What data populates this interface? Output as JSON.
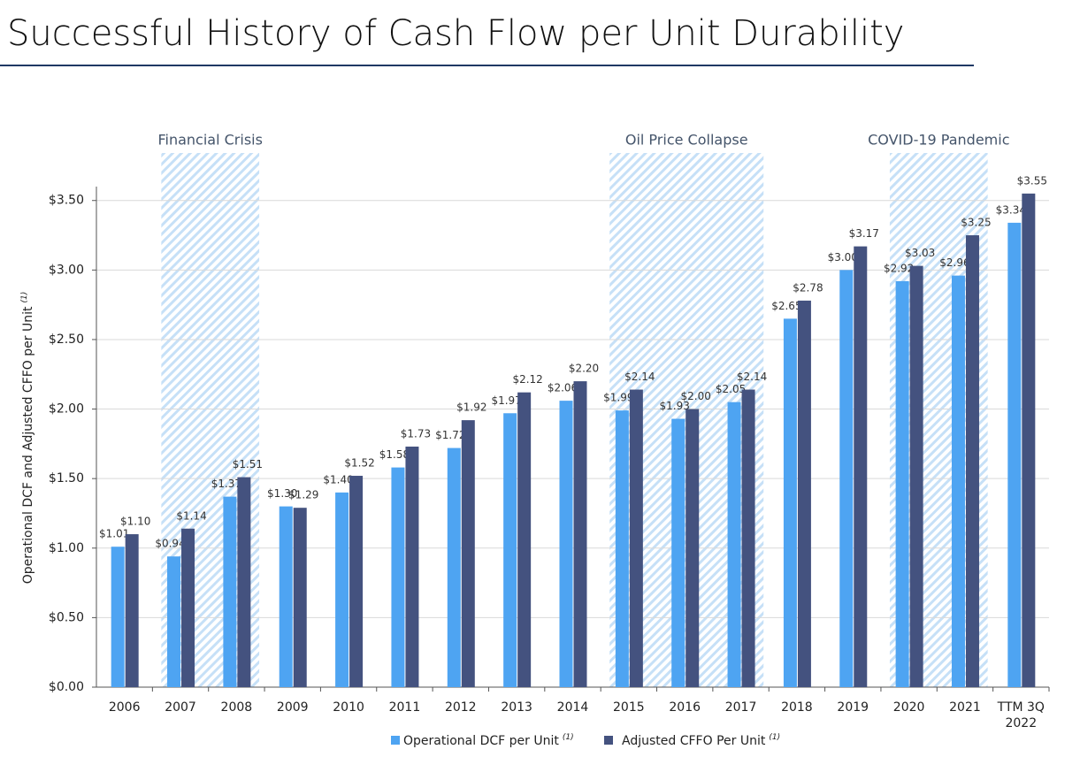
{
  "chart_data": {
    "type": "bar",
    "title": "Successful History of Cash Flow per Unit Durability",
    "y_label": "Operational DCF and Adjusted CFFO per Unit",
    "footnote_marker": "(1)",
    "categories": [
      "2006",
      "2007",
      "2008",
      "2009",
      "2010",
      "2011",
      "2012",
      "2013",
      "2014",
      "2015",
      "2016",
      "2017",
      "2018",
      "2019",
      "2020",
      "2021",
      "TTM 3Q 2022"
    ],
    "series": [
      {
        "name": "Operational DCF per Unit",
        "color": "#4ea4f2",
        "values": [
          1.01,
          0.94,
          1.37,
          1.3,
          1.4,
          1.58,
          1.72,
          1.97,
          2.06,
          1.99,
          1.93,
          2.05,
          2.65,
          3.0,
          2.92,
          2.96,
          3.34
        ],
        "value_labels": [
          "$1.01",
          "$0.94",
          "$1.37",
          "$1.30",
          "$1.40",
          "$1.58",
          "$1.72",
          "$1.97",
          "$2.06",
          "$1.99",
          "$1.93",
          "$2.05",
          "$2.65",
          "$3.00",
          "$2.92",
          "$2.96",
          "$3.34"
        ]
      },
      {
        "name": "Adjusted CFFO Per Unit",
        "color": "#44527f",
        "values": [
          1.1,
          1.14,
          1.51,
          1.29,
          1.52,
          1.73,
          1.92,
          2.12,
          2.2,
          2.14,
          2.0,
          2.14,
          2.78,
          3.17,
          3.03,
          3.25,
          3.55
        ],
        "value_labels": [
          "$1.10",
          "$1.14",
          "$1.51",
          "$1.29",
          "$1.52",
          "$1.73",
          "$1.92",
          "$2.12",
          "$2.20",
          "$2.14",
          "$2.00",
          "$2.14",
          "$2.78",
          "$3.17",
          "$3.03",
          "$3.25",
          "$3.55"
        ]
      }
    ],
    "ylim": [
      0,
      3.6
    ],
    "yticks": [
      {
        "value": 0,
        "label": "$0.00"
      },
      {
        "value": 0.5,
        "label": "$0.50"
      },
      {
        "value": 1,
        "label": "$1.00"
      },
      {
        "value": 1.5,
        "label": "$1.50"
      },
      {
        "value": 2,
        "label": "$2.00"
      },
      {
        "value": 2.5,
        "label": "$2.50"
      },
      {
        "value": 3,
        "label": "$3.00"
      },
      {
        "value": 3.5,
        "label": "$3.50"
      }
    ],
    "grid": true,
    "periods": [
      {
        "label": "Financial Crisis",
        "start": "2007",
        "end": "2008"
      },
      {
        "label": "Oil Price Collapse",
        "start": "2015",
        "end": "2017"
      },
      {
        "label": "COVID-19 Pandemic",
        "start": "2020",
        "end": "2021"
      }
    ]
  }
}
